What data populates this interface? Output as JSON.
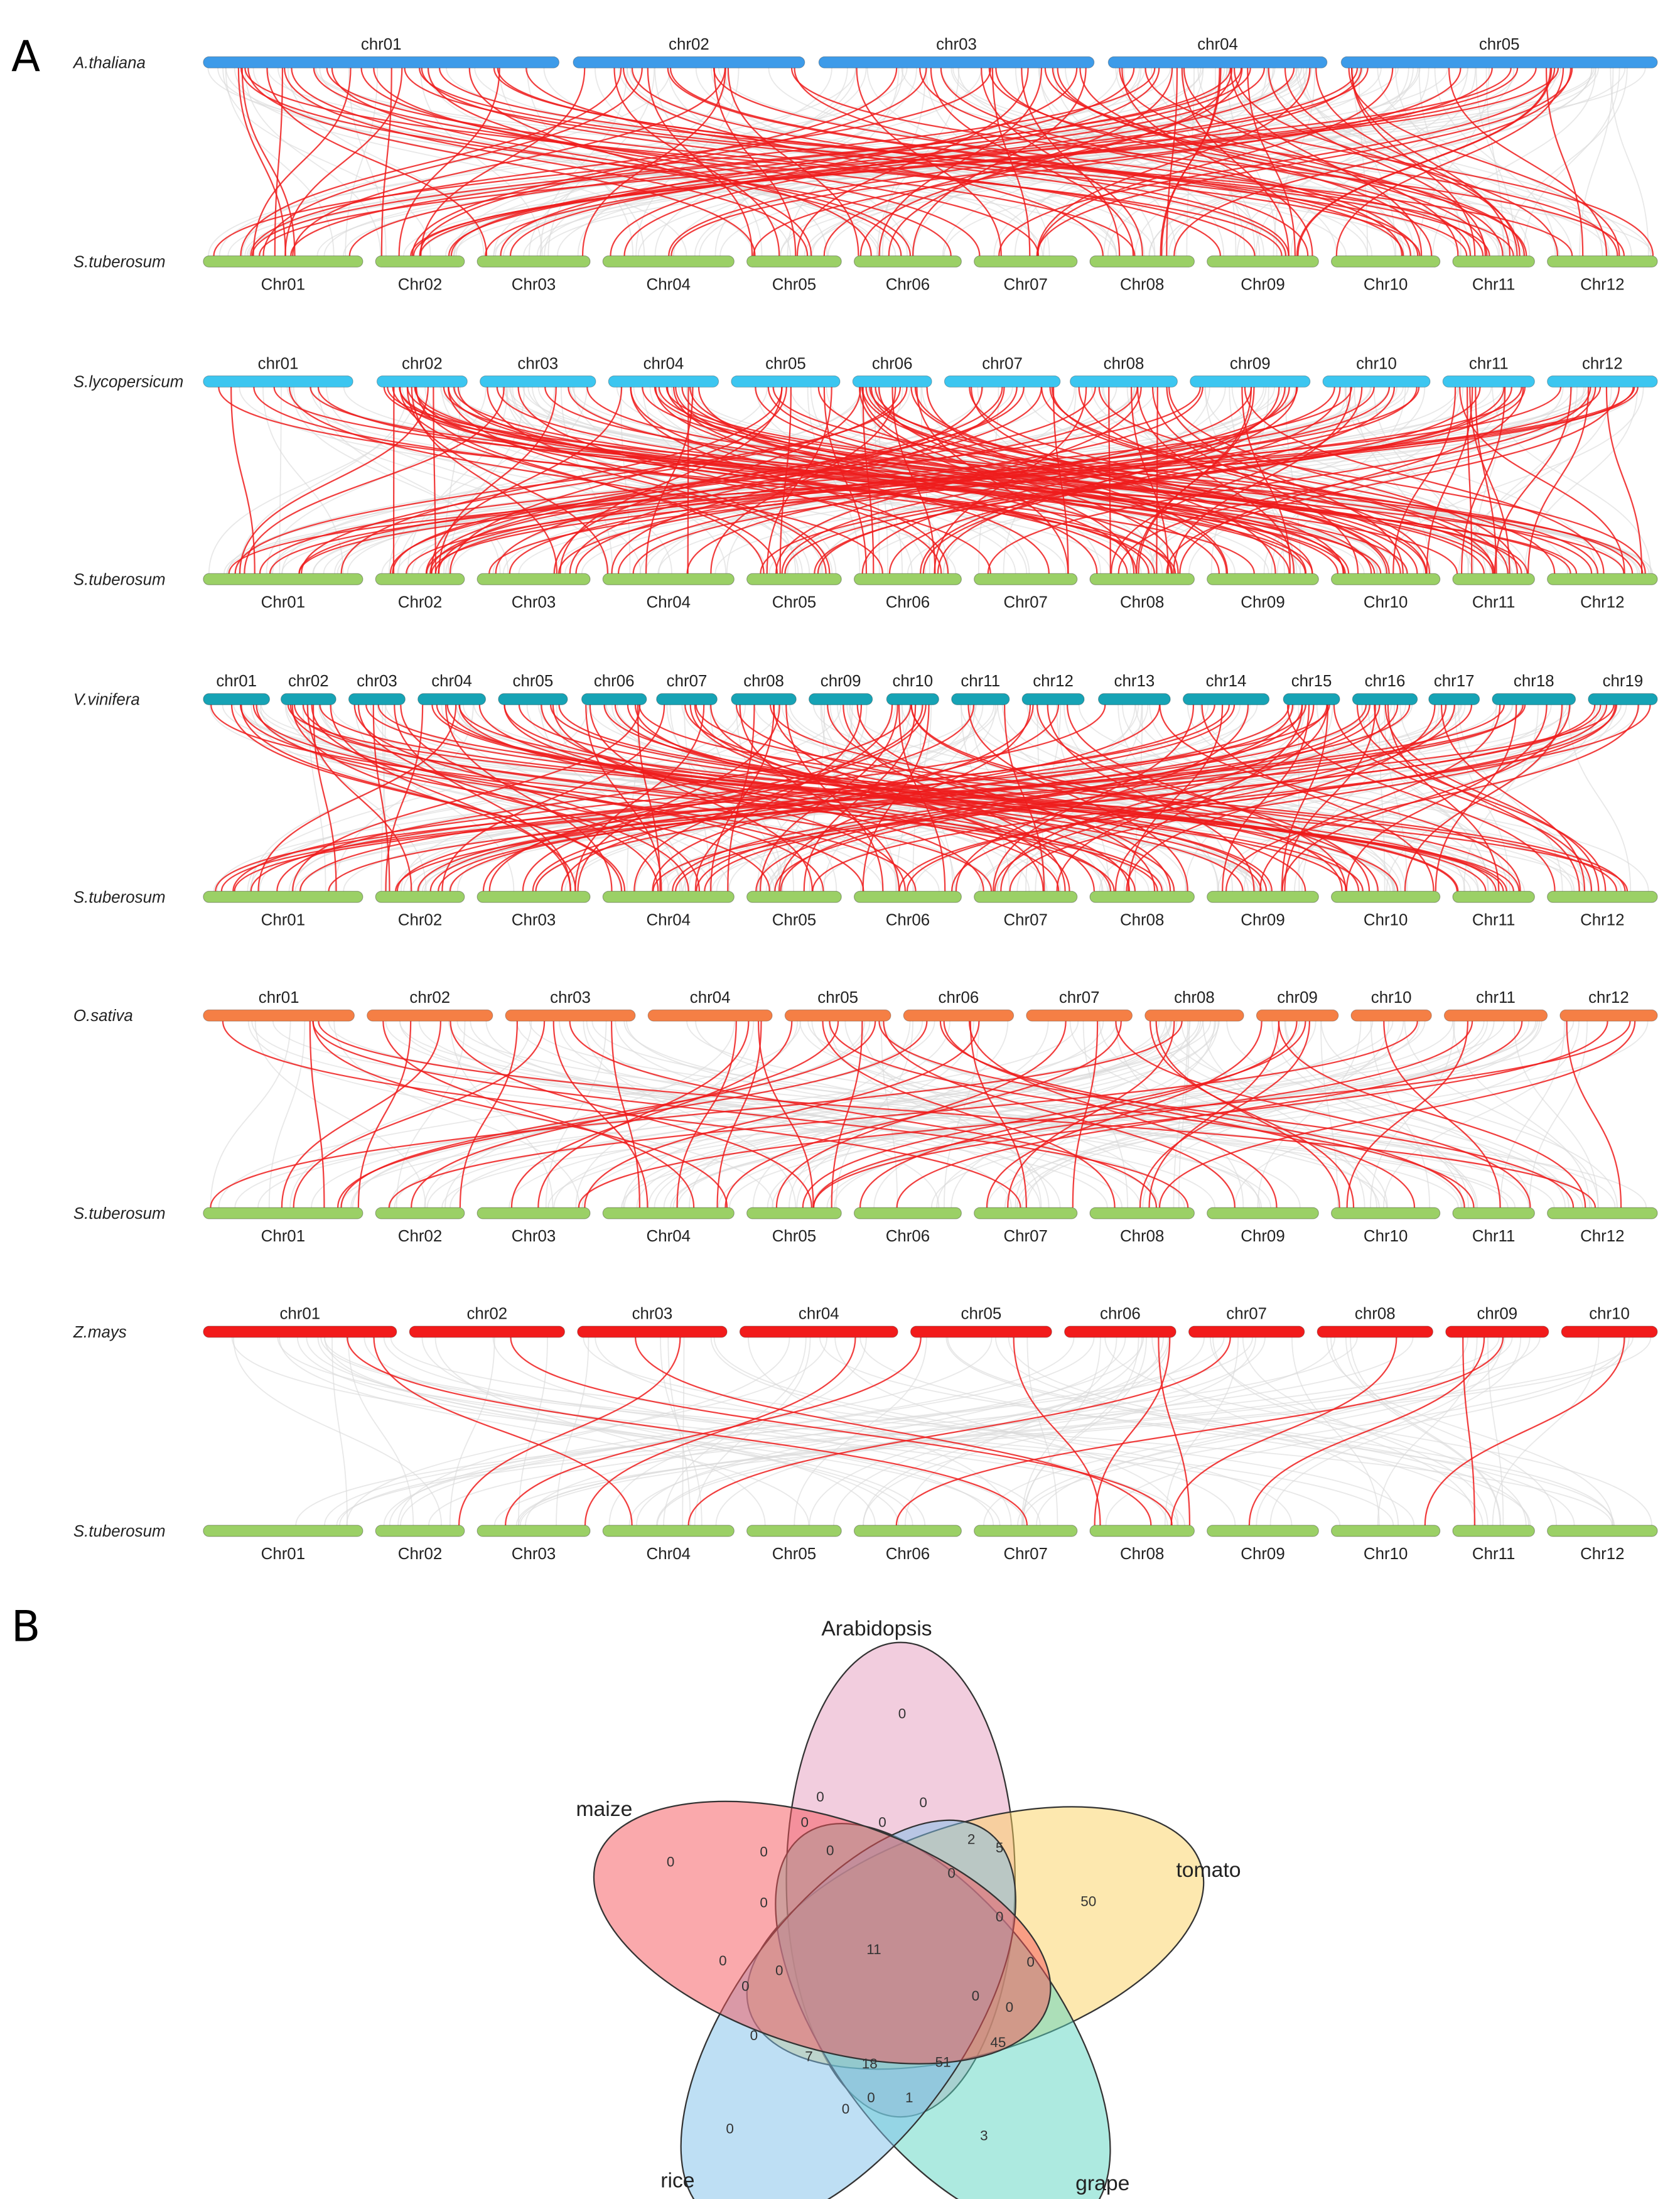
{
  "panels": {
    "a": "A",
    "b": "B"
  },
  "reference": {
    "species": "S.tuberosum",
    "color": "#9bd066",
    "chromosomes": [
      "Chr01",
      "Chr02",
      "Chr03",
      "Chr04",
      "Chr05",
      "Chr06",
      "Chr07",
      "Chr08",
      "Chr09",
      "Chr10",
      "Chr11",
      "Chr12"
    ]
  },
  "tracks": [
    {
      "species": "A.thaliana",
      "color": "#3d9be9",
      "chromosomes": [
        "chr01",
        "chr02",
        "chr03",
        "chr04",
        "chr05"
      ]
    },
    {
      "species": "S.lycopersicum",
      "color": "#3cc6f0",
      "chromosomes": [
        "chr01",
        "chr02",
        "chr03",
        "chr04",
        "chr05",
        "chr06",
        "chr07",
        "chr08",
        "chr09",
        "chr10",
        "chr11",
        "chr12"
      ]
    },
    {
      "species": "V.vinifera",
      "color": "#16a3b5",
      "chromosomes": [
        "chr01",
        "chr02",
        "chr03",
        "chr04",
        "chr05",
        "chr06",
        "chr07",
        "chr08",
        "chr09",
        "chr10",
        "chr11",
        "chr12",
        "chr13",
        "chr14",
        "chr15",
        "chr16",
        "chr17",
        "chr18",
        "chr19"
      ]
    },
    {
      "species": "O.sativa",
      "color": "#f57f45",
      "chromosomes": [
        "chr01",
        "chr02",
        "chr03",
        "chr04",
        "chr05",
        "chr06",
        "chr07",
        "chr08",
        "chr09",
        "chr10",
        "chr11",
        "chr12"
      ]
    },
    {
      "species": "Z.mays",
      "color": "#f21b1b",
      "chromosomes": [
        "chr01",
        "chr02",
        "chr03",
        "chr04",
        "chr05",
        "chr06",
        "chr07",
        "chr08",
        "chr09",
        "chr10"
      ]
    }
  ],
  "link_colors": {
    "syntenic": "#ee1c1c",
    "background": "#d9d9d9"
  },
  "venn": {
    "sets": [
      {
        "label": "Arabidopsis",
        "color": "#e59bbd"
      },
      {
        "label": "tomato",
        "color": "#fbd160"
      },
      {
        "label": "grape",
        "color": "#5cd6c2"
      },
      {
        "label": "rice",
        "color": "#7dbfea"
      },
      {
        "label": "maize",
        "color": "#f5545a"
      }
    ],
    "region_values": [
      "0",
      "0",
      "0",
      "0",
      "0",
      "2",
      "5",
      "0",
      "0",
      "0",
      "0",
      "50",
      "0",
      "0",
      "11",
      "0",
      "0",
      "0",
      "0",
      "0",
      "0",
      "0",
      "45",
      "7",
      "18",
      "51",
      "0",
      "1",
      "0",
      "0",
      "3"
    ]
  }
}
